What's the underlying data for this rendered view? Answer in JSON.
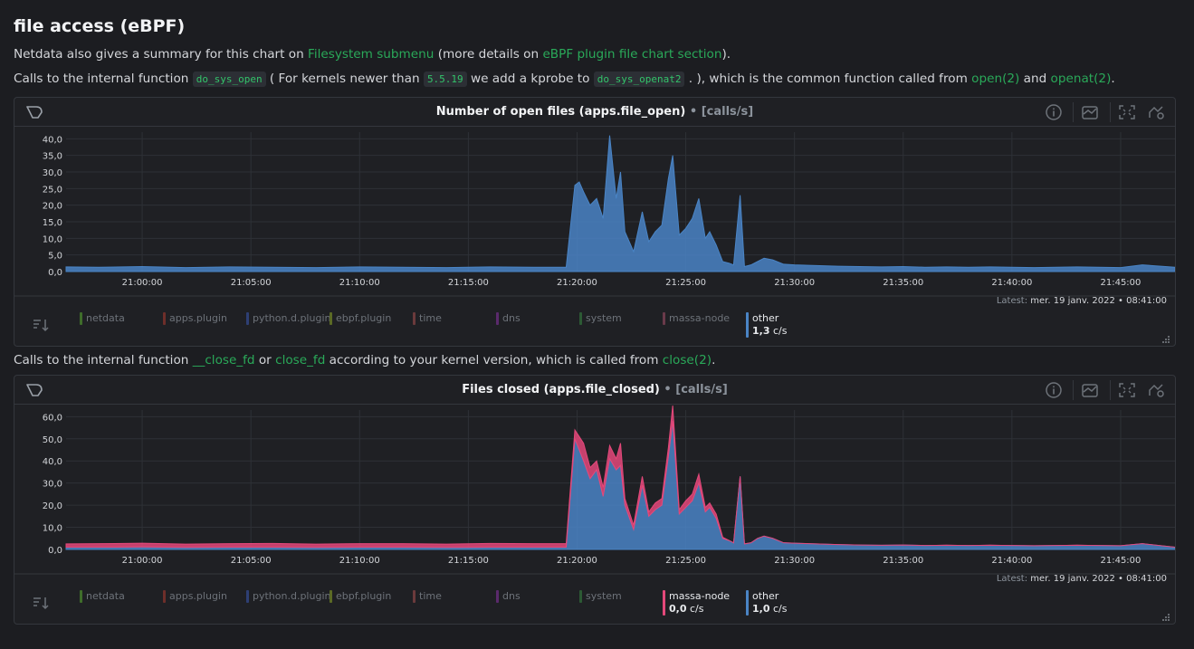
{
  "title": "file access (eBPF)",
  "para1": {
    "t1": "Netdata also gives a summary for this chart on ",
    "link1": "Filesystem submenu",
    "t2": " (more details on ",
    "link2": "eBPF plugin file chart section",
    "t3": ")."
  },
  "para2": {
    "t1": "Calls to the internal function ",
    "code1": "do_sys_open",
    "t2": " ( For kernels newer than ",
    "code2": "5.5.19",
    "t3": " we add a kprobe to ",
    "code3": "do_sys_openat2",
    "t4": " . ), which is the common function called from ",
    "link1": "open(2)",
    "t5": " and ",
    "link2": "openat(2)",
    "t6": "."
  },
  "para3": {
    "t1": "Calls to the internal function ",
    "link1": "__close_fd",
    "t2": " or ",
    "link2": "close_fd",
    "t3": " according to your kernel version, which is called from ",
    "link3": "close(2)",
    "t4": "."
  },
  "colors": {
    "netdata": "#3f6d2b",
    "apps_plugin": "#6e2e2a",
    "python_d_plugin": "#2e3f74",
    "ebpf_plugin": "#5b6a25",
    "time": "#6b3a3c",
    "dns": "#5a2a6c",
    "system": "#2c5a34",
    "massa_node": "#e4487a",
    "other": "#4a84c5",
    "massa_node_dim": "#6a3a4a"
  },
  "charts": [
    {
      "title": "Number of open files (apps.file_open)",
      "units": "[calls/s]",
      "latest_label": "Latest:",
      "latest_value": "mer. 19 janv. 2022 • 08:41:00",
      "legend": [
        {
          "name": "netdata",
          "color": "#3f6d2b"
        },
        {
          "name": "apps.plugin",
          "color": "#6e2e2a"
        },
        {
          "name": "python.d.plugin",
          "color": "#2e3f74"
        },
        {
          "name": "ebpf.plugin",
          "color": "#5b6a25"
        },
        {
          "name": "time",
          "color": "#6b3a3c"
        },
        {
          "name": "dns",
          "color": "#5a2a6c"
        },
        {
          "name": "system",
          "color": "#2c5a34"
        },
        {
          "name": "massa-node",
          "color": "#6a3a4a"
        },
        {
          "name": "other",
          "color": "#4a84c5",
          "active": true,
          "value": "1,3",
          "unit": "c/s"
        }
      ]
    },
    {
      "title": "Files closed (apps.file_closed)",
      "units": "[calls/s]",
      "latest_label": "Latest:",
      "latest_value": "mer. 19 janv. 2022 • 08:41:00",
      "legend": [
        {
          "name": "netdata",
          "color": "#3f6d2b"
        },
        {
          "name": "apps.plugin",
          "color": "#6e2e2a"
        },
        {
          "name": "python.d.plugin",
          "color": "#2e3f74"
        },
        {
          "name": "ebpf.plugin",
          "color": "#5b6a25"
        },
        {
          "name": "time",
          "color": "#6b3a3c"
        },
        {
          "name": "dns",
          "color": "#5a2a6c"
        },
        {
          "name": "system",
          "color": "#2c5a34"
        },
        {
          "name": "massa-node",
          "color": "#e4487a",
          "active": true,
          "value": "0,0",
          "unit": "c/s"
        },
        {
          "name": "other",
          "color": "#4a84c5",
          "active": true,
          "value": "1,0",
          "unit": "c/s"
        }
      ]
    }
  ],
  "chart_data": [
    {
      "type": "area",
      "title": "Number of open files (apps.file_open)",
      "ylabel": "calls/s",
      "ylim": [
        0,
        42
      ],
      "yticks": [
        "0,0",
        "5,0",
        "10,0",
        "15,0",
        "20,0",
        "25,0",
        "30,0",
        "35,0",
        "40,0"
      ],
      "ytick_values": [
        0,
        5,
        10,
        15,
        20,
        25,
        30,
        35,
        40
      ],
      "xlim": [
        1256.5,
        1307.5
      ],
      "xtick_minutes": [
        1260,
        1265,
        1270,
        1275,
        1280,
        1285,
        1290,
        1295,
        1300,
        1305
      ],
      "xticks": [
        "21:00:00",
        "21:05:00",
        "21:10:00",
        "21:15:00",
        "21:20:00",
        "21:25:00",
        "21:30:00",
        "21:35:00",
        "21:40:00",
        "21:45:00"
      ],
      "series": [
        {
          "name": "other",
          "color": "#4a84c5",
          "x": [
            1256.5,
            1258,
            1260,
            1262,
            1264,
            1266,
            1268,
            1270,
            1272,
            1274,
            1276,
            1278,
            1279.5,
            1279.9,
            1280.1,
            1280.3,
            1280.6,
            1280.9,
            1281.2,
            1281.5,
            1281.8,
            1282.0,
            1282.2,
            1282.6,
            1283.0,
            1283.3,
            1283.6,
            1283.9,
            1284.2,
            1284.4,
            1284.7,
            1285.0,
            1285.3,
            1285.6,
            1285.9,
            1286.1,
            1286.4,
            1286.7,
            1287.0,
            1287.2,
            1287.5,
            1287.7,
            1288.0,
            1288.3,
            1288.6,
            1289.0,
            1289.5,
            1290,
            1291,
            1292,
            1293,
            1294,
            1295,
            1296,
            1297,
            1298,
            1299,
            1300,
            1301,
            1302,
            1303,
            1304,
            1305,
            1306,
            1307.5
          ],
          "values": [
            1.4,
            1.3,
            1.5,
            1.2,
            1.4,
            1.3,
            1.2,
            1.4,
            1.3,
            1.2,
            1.4,
            1.3,
            1.3,
            26,
            27,
            24,
            20,
            22,
            16,
            41,
            22,
            30,
            12,
            6,
            18,
            9,
            12,
            14,
            28,
            35,
            11,
            13,
            16,
            22,
            10,
            12,
            8,
            3,
            2.5,
            2,
            23,
            1.5,
            2,
            3,
            4,
            3.5,
            2.2,
            2,
            1.8,
            1.6,
            1.5,
            1.4,
            1.5,
            1.3,
            1.4,
            1.3,
            1.4,
            1.3,
            1.2,
            1.3,
            1.4,
            1.3,
            1.2,
            2,
            1.3
          ]
        }
      ]
    },
    {
      "type": "area",
      "title": "Files closed (apps.file_closed)",
      "ylabel": "calls/s",
      "ylim": [
        0,
        63
      ],
      "yticks": [
        "0,0",
        "10,0",
        "20,0",
        "30,0",
        "40,0",
        "50,0",
        "60,0"
      ],
      "ytick_values": [
        0,
        10,
        20,
        30,
        40,
        50,
        60
      ],
      "xlim": [
        1256.5,
        1307.5
      ],
      "xtick_minutes": [
        1260,
        1265,
        1270,
        1275,
        1280,
        1285,
        1290,
        1295,
        1300,
        1305
      ],
      "xticks": [
        "21:00:00",
        "21:05:00",
        "21:10:00",
        "21:15:00",
        "21:20:00",
        "21:25:00",
        "21:30:00",
        "21:35:00",
        "21:40:00",
        "21:45:00"
      ],
      "series": [
        {
          "name": "other",
          "color": "#4a84c5",
          "x": [
            1256.5,
            1258,
            1260,
            1262,
            1264,
            1266,
            1268,
            1270,
            1272,
            1274,
            1276,
            1278,
            1279.5,
            1279.9,
            1280.1,
            1280.3,
            1280.6,
            1280.9,
            1281.2,
            1281.5,
            1281.8,
            1282.0,
            1282.2,
            1282.6,
            1283.0,
            1283.3,
            1283.6,
            1283.9,
            1284.2,
            1284.4,
            1284.7,
            1285.0,
            1285.3,
            1285.6,
            1285.9,
            1286.1,
            1286.4,
            1286.7,
            1287.0,
            1287.2,
            1287.5,
            1287.7,
            1288.0,
            1288.3,
            1288.6,
            1289.0,
            1289.5,
            1290,
            1291,
            1292,
            1293,
            1294,
            1295,
            1296,
            1297,
            1298,
            1299,
            1300,
            1301,
            1302,
            1303,
            1304,
            1305,
            1306,
            1307.5
          ],
          "values": [
            1.0,
            1.0,
            1.1,
            0.9,
            1.0,
            1.0,
            0.9,
            1.0,
            1.0,
            0.9,
            1.0,
            1.0,
            1.0,
            50,
            45,
            40,
            32,
            36,
            24,
            41,
            36,
            38,
            20,
            9,
            29,
            15,
            18,
            20,
            42,
            58,
            16,
            19,
            22,
            30,
            17,
            19,
            14,
            5,
            4,
            3,
            33,
            2.5,
            3,
            5,
            6,
            5,
            3,
            2.8,
            2.5,
            2.2,
            2.0,
            1.9,
            2.0,
            1.8,
            1.9,
            1.8,
            1.9,
            1.8,
            1.7,
            1.8,
            1.9,
            1.8,
            1.7,
            2.6,
            1.0
          ]
        },
        {
          "name": "massa-node",
          "color": "#e4487a",
          "x": [
            1256.5,
            1258,
            1260,
            1262,
            1264,
            1266,
            1268,
            1270,
            1272,
            1274,
            1276,
            1278,
            1279.5,
            1279.9,
            1280.1,
            1280.3,
            1280.6,
            1280.9,
            1281.2,
            1281.5,
            1281.8,
            1282.0,
            1282.2,
            1282.6,
            1283.0,
            1283.3,
            1283.6,
            1283.9,
            1284.2,
            1284.4,
            1284.7,
            1285.0,
            1285.3,
            1285.6,
            1285.9,
            1286.1,
            1286.4,
            1286.7,
            1287.0,
            1287.2,
            1287.5,
            1287.7,
            1288.0,
            1288.3,
            1288.6,
            1289.0,
            1289.5,
            1290,
            1291,
            1292,
            1293,
            1294,
            1295,
            1296,
            1297,
            1298,
            1299,
            1300,
            1301,
            1302,
            1303,
            1304,
            1305,
            1306,
            1307.5
          ],
          "values": [
            1.5,
            1.6,
            1.7,
            1.5,
            1.6,
            1.7,
            1.5,
            1.6,
            1.6,
            1.5,
            1.7,
            1.6,
            1.6,
            4,
            6,
            8,
            5,
            4,
            4,
            6,
            5,
            10,
            3,
            2,
            4,
            2,
            3,
            3,
            4,
            7,
            2,
            3,
            3,
            4,
            2,
            2,
            2,
            0.5,
            0,
            0,
            0,
            0,
            0,
            0,
            0,
            0,
            0,
            0,
            0,
            0,
            0,
            0,
            0,
            0,
            0,
            0,
            0,
            0,
            0,
            0,
            0,
            0,
            0,
            0,
            0
          ]
        }
      ]
    }
  ]
}
